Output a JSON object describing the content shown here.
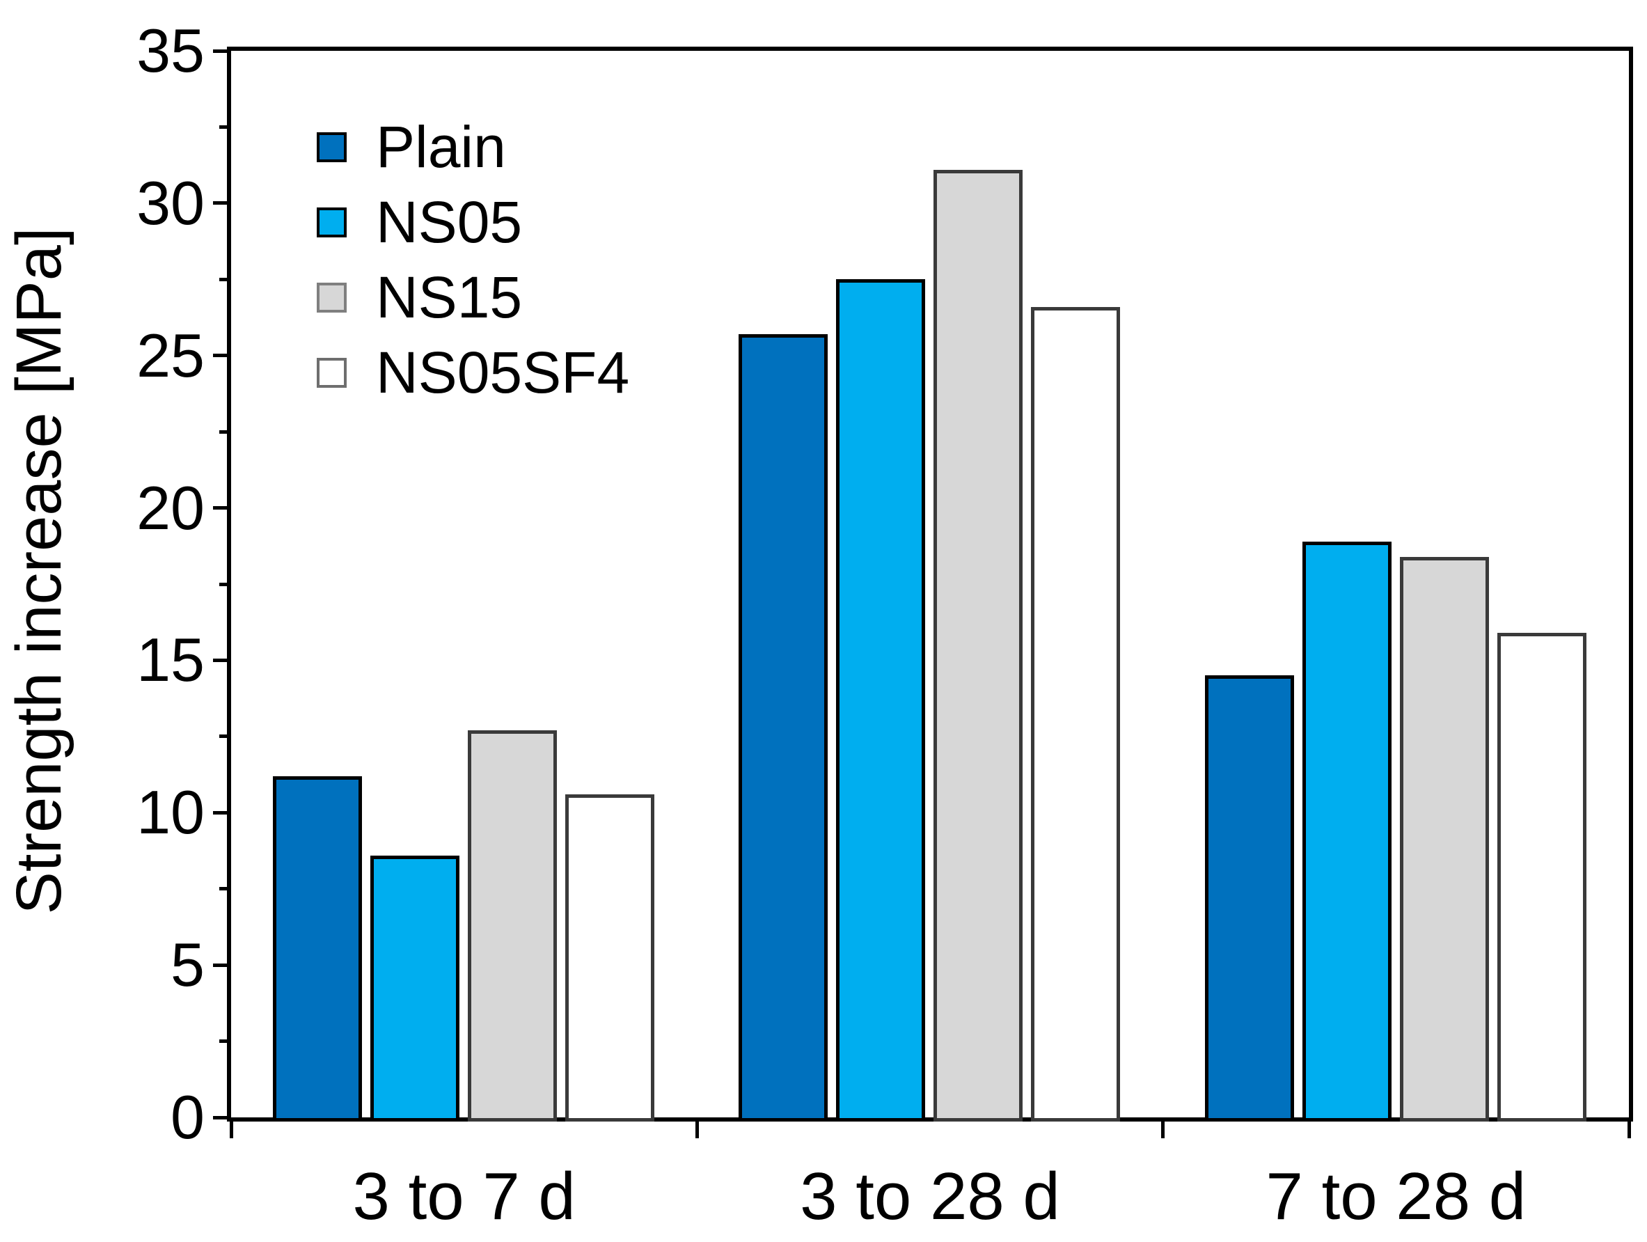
{
  "chart_data": {
    "type": "bar",
    "title": "",
    "xlabel": "",
    "ylabel": "Strength increase [MPa]",
    "ylim": [
      0,
      35
    ],
    "y_major_tick_step": 5,
    "y_minor_tick_step": 2.5,
    "y_tick_labels": [
      "0",
      "5",
      "10",
      "15",
      "20",
      "25",
      "30",
      "35"
    ],
    "grid": false,
    "legend_position": "top-left-inside",
    "categories": [
      "3 to 7 d",
      "3 to 28 d",
      "7 to 28 d"
    ],
    "series": [
      {
        "name": "Plain",
        "color": "#0071be",
        "bar_border": "#000000",
        "swatch_border": "#000000",
        "values": [
          11.2,
          25.7,
          14.5
        ]
      },
      {
        "name": "NS05",
        "color": "#00aeef",
        "bar_border": "#000000",
        "swatch_border": "#000000",
        "values": [
          8.6,
          27.5,
          18.9
        ]
      },
      {
        "name": "NS15",
        "color": "#d7d7d7",
        "bar_border": "#3a3a3a",
        "swatch_border": "#7f7f7f",
        "values": [
          12.7,
          31.1,
          18.4
        ]
      },
      {
        "name": "NS05SF4",
        "color": "#ffffff",
        "bar_border": "#3a3a3a",
        "swatch_border": "#6e6e6e",
        "values": [
          10.6,
          26.6,
          15.9
        ]
      }
    ]
  }
}
